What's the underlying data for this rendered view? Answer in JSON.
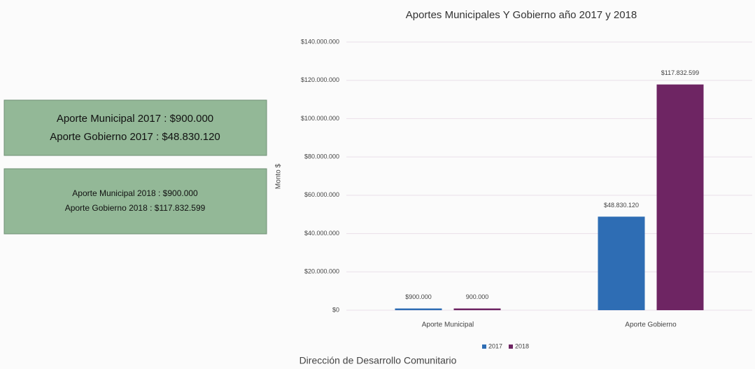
{
  "boxes": [
    {
      "lines": [
        "Aporte Municipal 2017 :  $900.000",
        "Aporte Gobierno 2017  :   $48.830.120"
      ]
    },
    {
      "lines": [
        "Aporte Municipal 2018  : $900.000",
        "Aporte Gobierno 2018  : $117.832.599"
      ]
    }
  ],
  "footer": "Dirección de Desarrollo Comunitario",
  "chart_data": {
    "type": "bar",
    "title": "Aportes Municipales Y Gobierno año 2017 y 2018",
    "y_label": "Monto $",
    "categories": [
      "Aporte Municipal",
      "Aporte Gobierno"
    ],
    "series": [
      {
        "name": "2017",
        "color": "#2e6db4",
        "values": [
          900000,
          48830120
        ],
        "value_labels": [
          "$900.000",
          "$48.830.120"
        ]
      },
      {
        "name": "2018",
        "color": "#6e2563",
        "values": [
          900000,
          117832599
        ],
        "value_labels": [
          "900.000",
          "$117.832.599"
        ]
      }
    ],
    "ylim": [
      0,
      140000000
    ],
    "yticks": [
      {
        "value": 0,
        "label": "$0"
      },
      {
        "value": 20000000,
        "label": "$20.000.000"
      },
      {
        "value": 40000000,
        "label": "$40.000.000"
      },
      {
        "value": 60000000,
        "label": "$60.000.000"
      },
      {
        "value": 80000000,
        "label": "$80.000.000"
      },
      {
        "value": 100000000,
        "label": "$100.000.000"
      },
      {
        "value": 120000000,
        "label": "$120.000.000"
      },
      {
        "value": 140000000,
        "label": "$140.000.000"
      }
    ],
    "grid": true,
    "legend": "bottom"
  }
}
